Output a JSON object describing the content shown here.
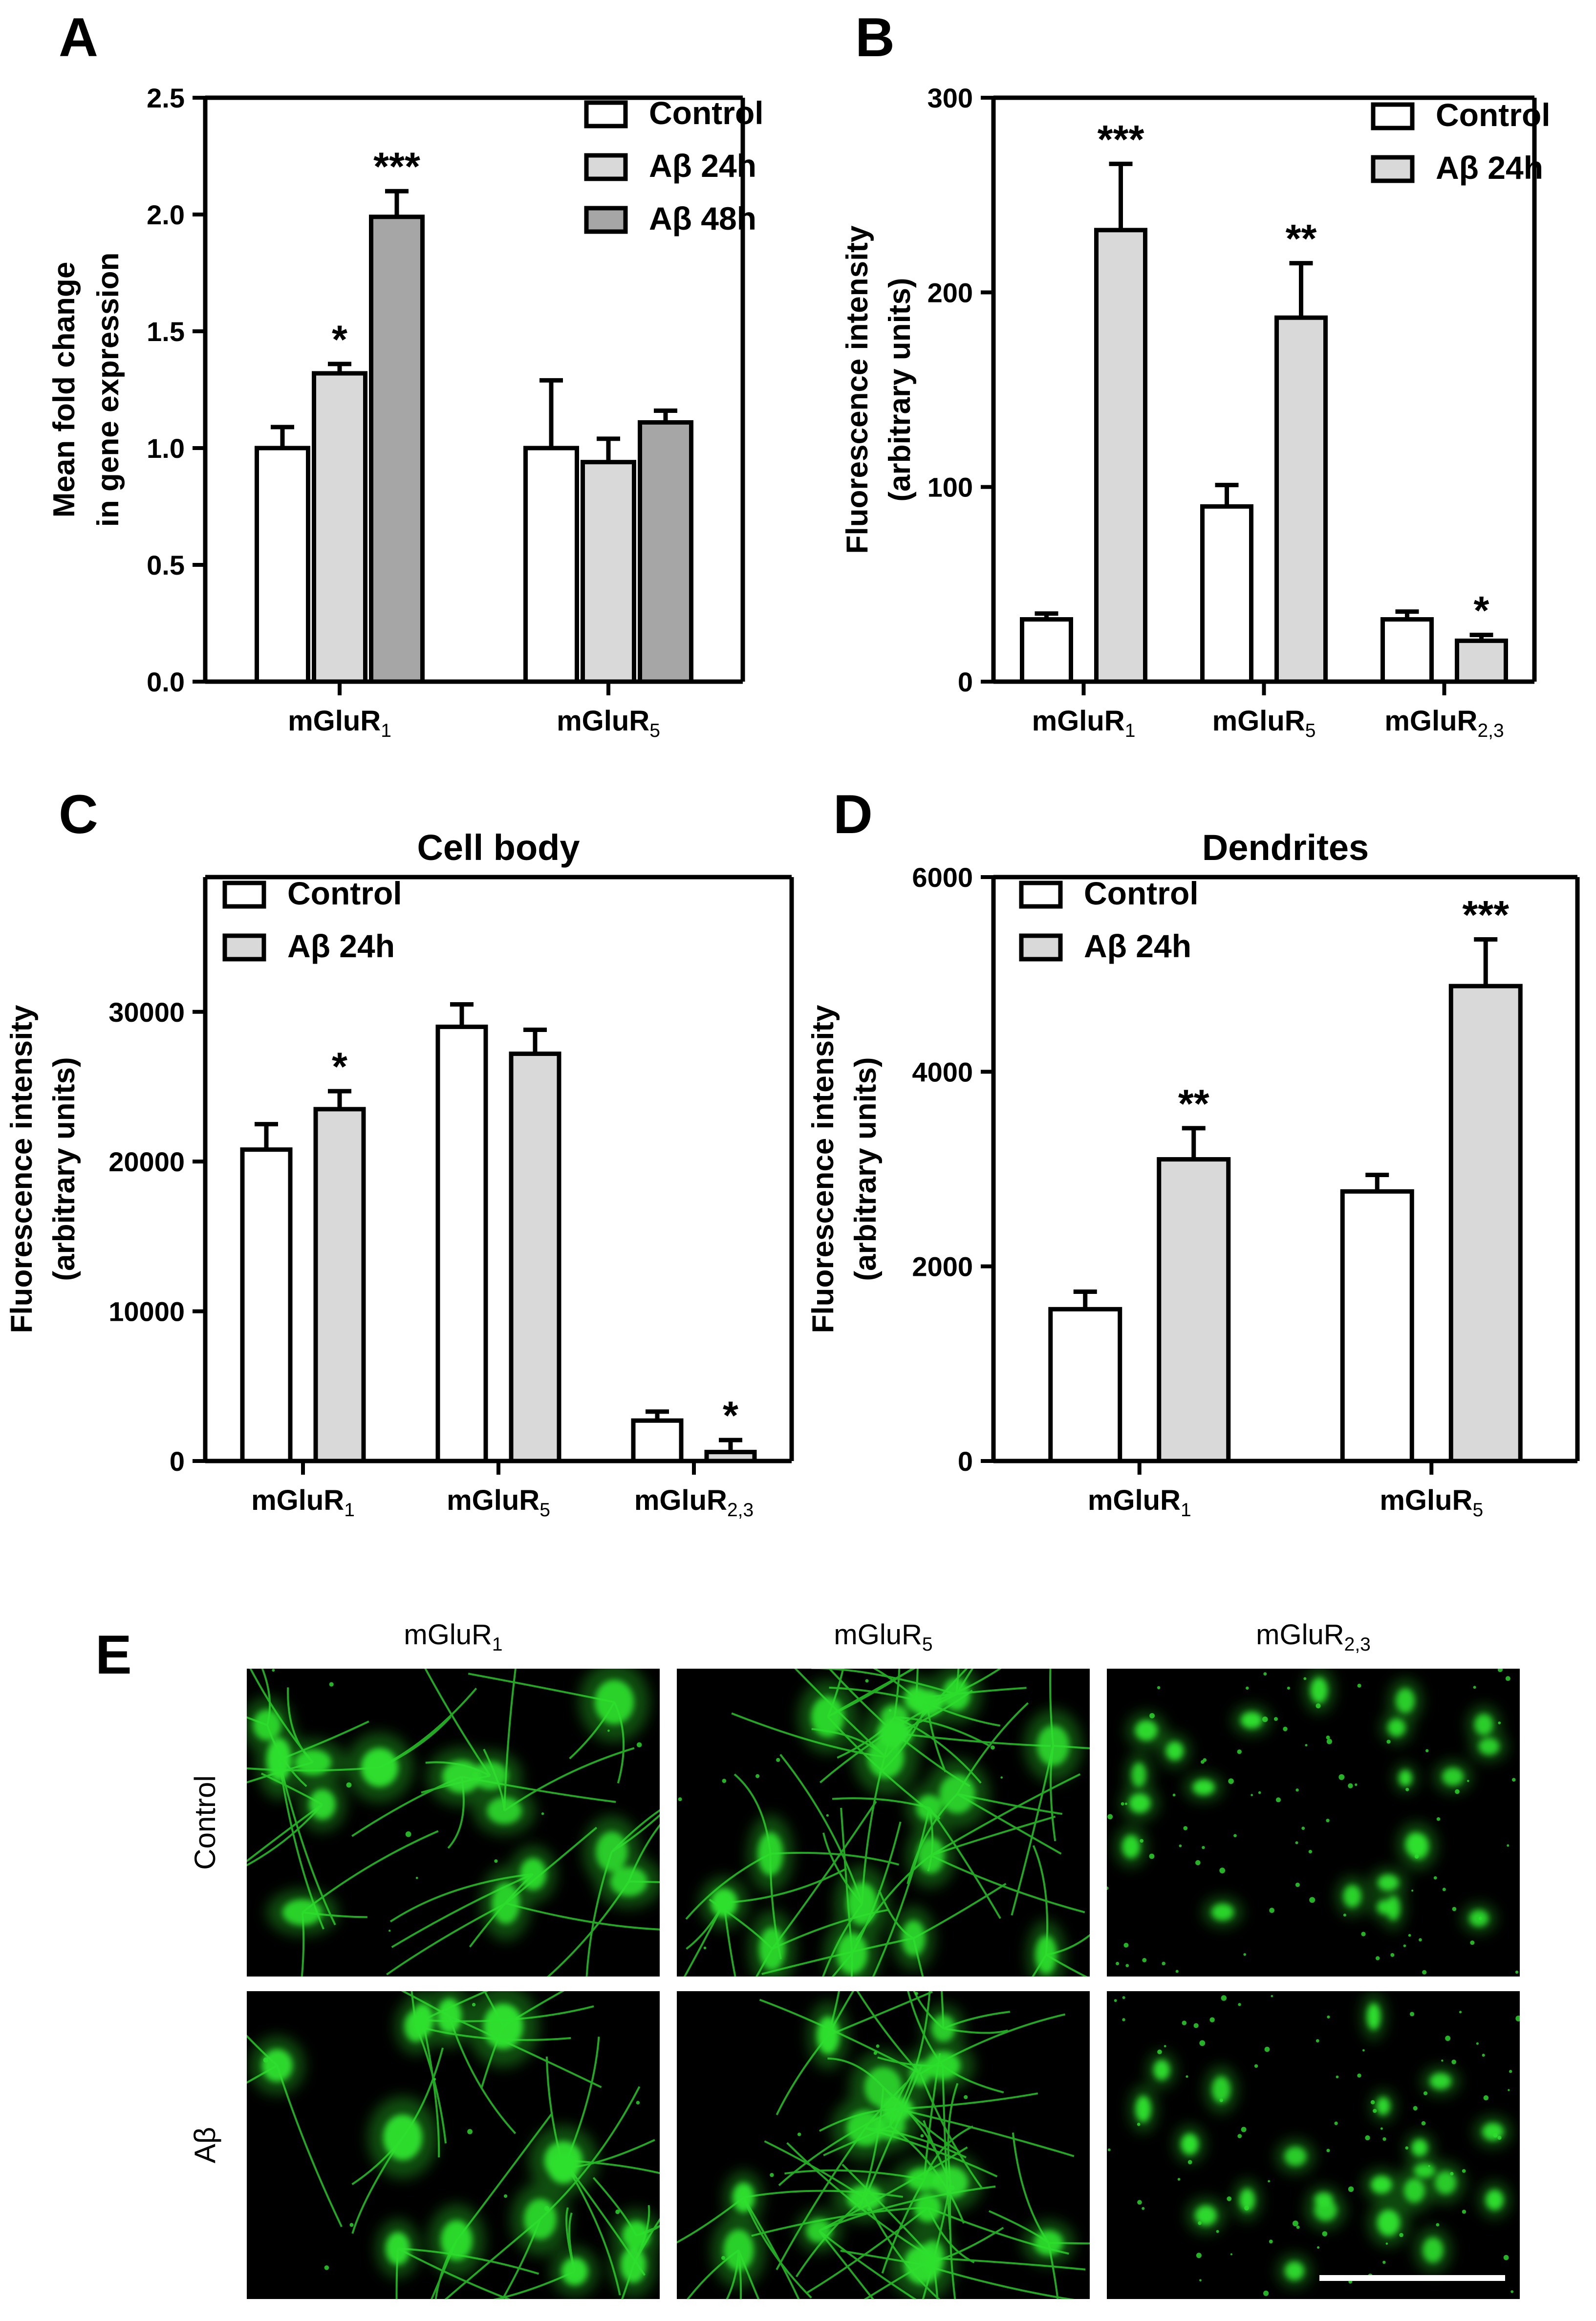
{
  "chart_data": [
    {
      "panel": "A",
      "type": "bar",
      "title": "",
      "ylabel": [
        "Mean fold change",
        "in gene expression"
      ],
      "ylim": [
        0,
        2.5
      ],
      "yticks": [
        "0.0",
        "0.5",
        "1.0",
        "1.5",
        "2.0",
        "2.5"
      ],
      "categories": [
        [
          "mGluR",
          "1"
        ],
        [
          "mGluR",
          "5"
        ]
      ],
      "legend_position": "top-right",
      "series": [
        {
          "name": "Control",
          "color": "#ffffff",
          "values": [
            1.0,
            1.0
          ],
          "errors": [
            0.09,
            0.29
          ],
          "sig": [
            "",
            ""
          ]
        },
        {
          "name": "Aβ 24h",
          "color": "#d9d9d9",
          "values": [
            1.32,
            0.94
          ],
          "errors": [
            0.04,
            0.1
          ],
          "sig": [
            "*",
            ""
          ]
        },
        {
          "name": "Aβ 48h",
          "color": "#a6a6a6",
          "values": [
            1.99,
            1.11
          ],
          "errors": [
            0.11,
            0.05
          ],
          "sig": [
            "***",
            ""
          ]
        }
      ]
    },
    {
      "panel": "B",
      "type": "bar",
      "title": "",
      "ylabel": [
        "Fluorescence intensity",
        "(arbitrary units)"
      ],
      "ylim": [
        0,
        300
      ],
      "yticks": [
        "0",
        "100",
        "200",
        "300"
      ],
      "categories": [
        [
          "mGluR",
          "1"
        ],
        [
          "mGluR",
          "5"
        ],
        [
          "mGluR",
          "2,3"
        ]
      ],
      "legend_position": "top-right",
      "series": [
        {
          "name": "Control",
          "color": "#ffffff",
          "values": [
            32,
            90,
            32
          ],
          "errors": [
            3,
            11,
            4
          ],
          "sig": [
            "",
            "",
            ""
          ]
        },
        {
          "name": "Aβ 24h",
          "color": "#d9d9d9",
          "values": [
            232,
            187,
            21
          ],
          "errors": [
            34,
            28,
            3
          ],
          "sig": [
            "***",
            "**",
            "*"
          ]
        }
      ]
    },
    {
      "panel": "C",
      "type": "bar",
      "title": "Cell body",
      "ylabel": [
        "Fluorescence intensity",
        "(arbitrary units)"
      ],
      "ylim": [
        0,
        39000
      ],
      "yticks": [
        "0",
        "10000",
        "20000",
        "30000"
      ],
      "categories": [
        [
          "mGluR",
          "1"
        ],
        [
          "mGluR",
          "5"
        ],
        [
          "mGluR",
          "2,3"
        ]
      ],
      "legend_position": "top-left",
      "series": [
        {
          "name": "Control",
          "color": "#ffffff",
          "values": [
            20800,
            29000,
            2700
          ],
          "errors": [
            1700,
            1500,
            600
          ],
          "sig": [
            "",
            "",
            ""
          ]
        },
        {
          "name": "Aβ 24h",
          "color": "#d9d9d9",
          "values": [
            23500,
            27200,
            600
          ],
          "errors": [
            1200,
            1600,
            800
          ],
          "sig": [
            "*",
            "",
            "*"
          ]
        }
      ]
    },
    {
      "panel": "D",
      "type": "bar",
      "title": "Dendrites",
      "ylabel": [
        "Fluorescence intensity",
        "(arbitrary units)"
      ],
      "ylim": [
        0,
        6000
      ],
      "yticks": [
        "0",
        "2000",
        "4000",
        "6000"
      ],
      "categories": [
        [
          "mGluR",
          "1"
        ],
        [
          "mGluR",
          "5"
        ]
      ],
      "legend_position": "top-left",
      "series": [
        {
          "name": "Control",
          "color": "#ffffff",
          "values": [
            1560,
            2770
          ],
          "errors": [
            180,
            170
          ],
          "sig": [
            "",
            ""
          ]
        },
        {
          "name": "Aβ 24h",
          "color": "#d9d9d9",
          "values": [
            3100,
            4880
          ],
          "errors": [
            320,
            480
          ],
          "sig": [
            "**",
            "***"
          ]
        }
      ]
    }
  ],
  "panel_e": {
    "label": "E",
    "columns": [
      [
        "mGluR",
        "1"
      ],
      [
        "mGluR",
        "5"
      ],
      [
        "mGluR",
        "2,3"
      ]
    ],
    "rows": [
      "Control",
      "Aβ"
    ],
    "background_color": "#000000",
    "signal_color": "#2ee02e"
  },
  "panel_labels": [
    "A",
    "B",
    "C",
    "D"
  ]
}
